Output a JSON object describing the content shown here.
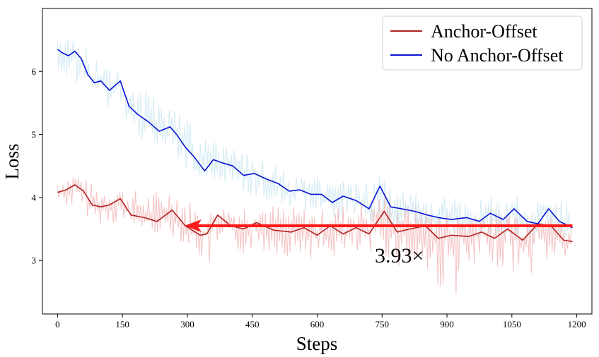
{
  "chart_data": {
    "type": "line",
    "xlabel": "Steps",
    "ylabel": "Loss",
    "xlim": [
      -35,
      1235
    ],
    "ylim": [
      2.15,
      7.0
    ],
    "xticks": [
      0,
      150,
      300,
      450,
      600,
      750,
      900,
      1050,
      1200
    ],
    "yticks": [
      3,
      4,
      5,
      6
    ],
    "grid": false,
    "legend_position": "top-right",
    "series": [
      {
        "name": "Anchor-Offset",
        "color": "#b22222",
        "raw_color": "#f2b8b8",
        "smoothed": [
          [
            0,
            4.08
          ],
          [
            20,
            4.12
          ],
          [
            40,
            4.2
          ],
          [
            60,
            4.1
          ],
          [
            80,
            3.88
          ],
          [
            100,
            3.85
          ],
          [
            120,
            3.88
          ],
          [
            145,
            3.98
          ],
          [
            170,
            3.72
          ],
          [
            200,
            3.68
          ],
          [
            230,
            3.62
          ],
          [
            265,
            3.8
          ],
          [
            295,
            3.55
          ],
          [
            330,
            3.4
          ],
          [
            345,
            3.42
          ],
          [
            370,
            3.72
          ],
          [
            400,
            3.55
          ],
          [
            430,
            3.5
          ],
          [
            460,
            3.6
          ],
          [
            500,
            3.48
          ],
          [
            540,
            3.45
          ],
          [
            570,
            3.52
          ],
          [
            600,
            3.4
          ],
          [
            630,
            3.55
          ],
          [
            660,
            3.42
          ],
          [
            690,
            3.52
          ],
          [
            720,
            3.42
          ],
          [
            755,
            3.78
          ],
          [
            785,
            3.45
          ],
          [
            815,
            3.5
          ],
          [
            850,
            3.55
          ],
          [
            880,
            3.35
          ],
          [
            910,
            3.4
          ],
          [
            950,
            3.38
          ],
          [
            980,
            3.45
          ],
          [
            1010,
            3.35
          ],
          [
            1040,
            3.5
          ],
          [
            1075,
            3.32
          ],
          [
            1110,
            3.58
          ],
          [
            1140,
            3.55
          ],
          [
            1170,
            3.32
          ],
          [
            1190,
            3.3
          ]
        ],
        "raw_min": [
          [
            0,
            3.9
          ],
          [
            100,
            3.55
          ],
          [
            200,
            3.5
          ],
          [
            300,
            3.2
          ],
          [
            355,
            2.78
          ],
          [
            450,
            3.1
          ],
          [
            600,
            2.95
          ],
          [
            750,
            3.0
          ],
          [
            915,
            2.3
          ],
          [
            1000,
            2.9
          ],
          [
            1080,
            2.62
          ],
          [
            1190,
            3.08
          ]
        ],
        "raw_max": [
          [
            0,
            4.3
          ],
          [
            40,
            4.42
          ],
          [
            100,
            4.2
          ],
          [
            150,
            4.15
          ],
          [
            280,
            4.2
          ],
          [
            340,
            3.8
          ],
          [
            450,
            4.0
          ],
          [
            600,
            3.85
          ],
          [
            755,
            4.15
          ],
          [
            900,
            3.8
          ],
          [
            1050,
            3.9
          ],
          [
            1190,
            3.65
          ]
        ]
      },
      {
        "name": "No Anchor-Offset",
        "color": "#0a14d4",
        "raw_color": "#cce8f2",
        "smoothed": [
          [
            0,
            6.35
          ],
          [
            10,
            6.3
          ],
          [
            25,
            6.25
          ],
          [
            40,
            6.32
          ],
          [
            55,
            6.2
          ],
          [
            70,
            5.95
          ],
          [
            85,
            5.82
          ],
          [
            100,
            5.85
          ],
          [
            120,
            5.7
          ],
          [
            145,
            5.85
          ],
          [
            165,
            5.45
          ],
          [
            185,
            5.32
          ],
          [
            210,
            5.2
          ],
          [
            235,
            5.05
          ],
          [
            260,
            5.12
          ],
          [
            275,
            5.0
          ],
          [
            295,
            4.8
          ],
          [
            315,
            4.65
          ],
          [
            340,
            4.42
          ],
          [
            360,
            4.6
          ],
          [
            380,
            4.55
          ],
          [
            405,
            4.5
          ],
          [
            430,
            4.35
          ],
          [
            455,
            4.38
          ],
          [
            480,
            4.3
          ],
          [
            510,
            4.22
          ],
          [
            535,
            4.1
          ],
          [
            560,
            4.12
          ],
          [
            585,
            4.05
          ],
          [
            610,
            4.05
          ],
          [
            635,
            3.92
          ],
          [
            660,
            4.02
          ],
          [
            690,
            3.95
          ],
          [
            720,
            3.82
          ],
          [
            745,
            4.18
          ],
          [
            770,
            3.85
          ],
          [
            795,
            3.82
          ],
          [
            825,
            3.78
          ],
          [
            855,
            3.72
          ],
          [
            880,
            3.68
          ],
          [
            910,
            3.65
          ],
          [
            945,
            3.68
          ],
          [
            975,
            3.62
          ],
          [
            1000,
            3.75
          ],
          [
            1030,
            3.65
          ],
          [
            1055,
            3.82
          ],
          [
            1085,
            3.62
          ],
          [
            1110,
            3.58
          ],
          [
            1135,
            3.82
          ],
          [
            1160,
            3.62
          ],
          [
            1190,
            3.52
          ]
        ],
        "raw_min": [
          [
            0,
            6.0
          ],
          [
            100,
            5.5
          ],
          [
            200,
            4.8
          ],
          [
            300,
            4.4
          ],
          [
            400,
            4.15
          ],
          [
            500,
            3.85
          ],
          [
            600,
            3.7
          ],
          [
            700,
            3.55
          ],
          [
            800,
            3.45
          ],
          [
            900,
            3.4
          ],
          [
            1000,
            3.35
          ],
          [
            1100,
            3.3
          ],
          [
            1190,
            3.35
          ]
        ],
        "raw_max": [
          [
            0,
            6.6
          ],
          [
            30,
            6.68
          ],
          [
            100,
            6.2
          ],
          [
            200,
            5.8
          ],
          [
            265,
            5.5
          ],
          [
            360,
            4.95
          ],
          [
            450,
            4.7
          ],
          [
            550,
            4.45
          ],
          [
            650,
            4.3
          ],
          [
            750,
            4.4
          ],
          [
            850,
            4.1
          ],
          [
            950,
            4.05
          ],
          [
            1050,
            4.05
          ],
          [
            1130,
            4.1
          ],
          [
            1190,
            3.95
          ]
        ]
      }
    ],
    "annotation": {
      "text": "3.93×",
      "color": "#ff1a1a",
      "arrow_from": [
        1190,
        3.55
      ],
      "arrow_to": [
        300,
        3.55
      ],
      "text_at": [
        790,
        3.1
      ]
    }
  }
}
